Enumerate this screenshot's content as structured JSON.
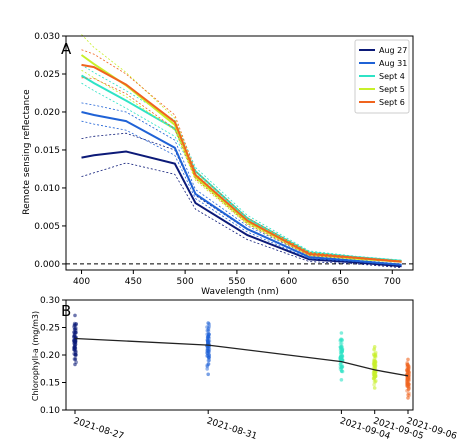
{
  "colors": {
    "aug27": "#0c1a78",
    "aug31": "#1f62d6",
    "sept4": "#2fe3c6",
    "sept5": "#c8f02a",
    "sept6": "#f0641e",
    "trend": "#222222"
  },
  "chart_data": [
    {
      "type": "line",
      "panel_label": "A",
      "xlabel": "Wavelength (nm)",
      "ylabel": "Remote sensing reflectance",
      "xlim": [
        385,
        720
      ],
      "ylim": [
        -0.0008,
        0.03
      ],
      "x_ticks": [
        400,
        450,
        500,
        550,
        600,
        650,
        700
      ],
      "y_ticks": [
        0.0,
        0.005,
        0.01,
        0.015,
        0.02,
        0.025,
        0.03
      ],
      "y_tick_labels": [
        "0.000",
        "0.005",
        "0.010",
        "0.015",
        "0.020",
        "0.025",
        "0.030"
      ],
      "zero_line": true,
      "legend_position": "top-right",
      "x": [
        400,
        412,
        443,
        490,
        510,
        560,
        620,
        665,
        709
      ],
      "series": [
        {
          "name": "Aug 27",
          "color_key": "aug27",
          "values": [
            0.014,
            0.0143,
            0.0148,
            0.0132,
            0.008,
            0.0038,
            0.0006,
            0.0002,
            -0.0003
          ],
          "upper": [
            0.0165,
            0.0168,
            0.0172,
            0.015,
            0.009,
            0.0045,
            0.0009,
            0.0004,
            -0.0001
          ],
          "lower": [
            0.0115,
            0.012,
            0.0133,
            0.0118,
            0.0072,
            0.0032,
            0.0003,
            0.0,
            -0.0005
          ]
        },
        {
          "name": "Aug 31",
          "color_key": "aug31",
          "values": [
            0.02,
            0.0196,
            0.0188,
            0.0153,
            0.0092,
            0.0046,
            0.0009,
            0.0004,
            -0.0001
          ],
          "upper": [
            0.0212,
            0.0209,
            0.02,
            0.0163,
            0.0098,
            0.005,
            0.0011,
            0.0005,
            0.0
          ],
          "lower": [
            0.0188,
            0.0184,
            0.0176,
            0.0143,
            0.0086,
            0.0042,
            0.0007,
            0.0003,
            -0.0002
          ]
        },
        {
          "name": "Sept 4",
          "color_key": "sept4",
          "values": [
            0.0248,
            0.0238,
            0.0215,
            0.0178,
            0.0122,
            0.006,
            0.0015,
            0.0009,
            0.0004
          ],
          "upper": [
            0.0262,
            0.0252,
            0.0228,
            0.0189,
            0.0127,
            0.0064,
            0.0017,
            0.001,
            0.0005
          ],
          "lower": [
            0.0238,
            0.0228,
            0.0205,
            0.0168,
            0.0117,
            0.0056,
            0.0013,
            0.0008,
            0.0003
          ]
        },
        {
          "name": "Sept 5",
          "color_key": "sept5",
          "values": [
            0.0275,
            0.0263,
            0.0235,
            0.0183,
            0.0114,
            0.0055,
            0.0013,
            0.0007,
            0.0003
          ],
          "upper": [
            0.0302,
            0.0285,
            0.0252,
            0.0192,
            0.0119,
            0.0058,
            0.0015,
            0.0008,
            0.0004
          ],
          "lower": [
            0.0255,
            0.0245,
            0.022,
            0.0176,
            0.011,
            0.0052,
            0.0011,
            0.0006,
            0.0002
          ]
        },
        {
          "name": "Sept 6",
          "color_key": "sept6",
          "values": [
            0.0262,
            0.0259,
            0.0236,
            0.0187,
            0.0117,
            0.0057,
            0.0013,
            0.0008,
            0.0003
          ],
          "upper": [
            0.0282,
            0.0276,
            0.025,
            0.0196,
            0.0122,
            0.0061,
            0.0015,
            0.0009,
            0.0004
          ],
          "lower": [
            0.0245,
            0.0244,
            0.0224,
            0.0178,
            0.0112,
            0.0053,
            0.0011,
            0.0007,
            0.0002
          ]
        }
      ]
    },
    {
      "type": "scatter",
      "panel_label": "B",
      "xlabel": "",
      "ylabel": "Chlorophyll-a (mg/m3)",
      "ylim": [
        0.1,
        0.3
      ],
      "y_ticks": [
        0.1,
        0.15,
        0.2,
        0.25,
        0.3
      ],
      "y_tick_labels": [
        "0.10",
        "0.15",
        "0.20",
        "0.25",
        "0.30"
      ],
      "xlim": [
        "2021-08-27",
        "2021-09-06"
      ],
      "x_tick_labels": [
        "2021-08-27",
        "2021-08-31",
        "2021-09-04",
        "2021-09-05",
        "2021-09-06"
      ],
      "groups": [
        {
          "date": "2021-08-27",
          "color_key": "aug27",
          "min": 0.183,
          "max": 0.272,
          "center": 0.228
        },
        {
          "date": "2021-08-31",
          "color_key": "aug31",
          "min": 0.165,
          "max": 0.258,
          "center": 0.217
        },
        {
          "date": "2021-09-04",
          "color_key": "sept4",
          "min": 0.155,
          "max": 0.24,
          "center": 0.195
        },
        {
          "date": "2021-09-05",
          "color_key": "sept5",
          "min": 0.14,
          "max": 0.215,
          "center": 0.175
        },
        {
          "date": "2021-09-06",
          "color_key": "sept6",
          "min": 0.122,
          "max": 0.192,
          "center": 0.16
        }
      ],
      "trend_line": {
        "x": [
          "2021-08-27",
          "2021-08-31",
          "2021-09-04",
          "2021-09-05",
          "2021-09-06"
        ],
        "y": [
          0.23,
          0.218,
          0.188,
          0.173,
          0.162
        ]
      }
    }
  ]
}
